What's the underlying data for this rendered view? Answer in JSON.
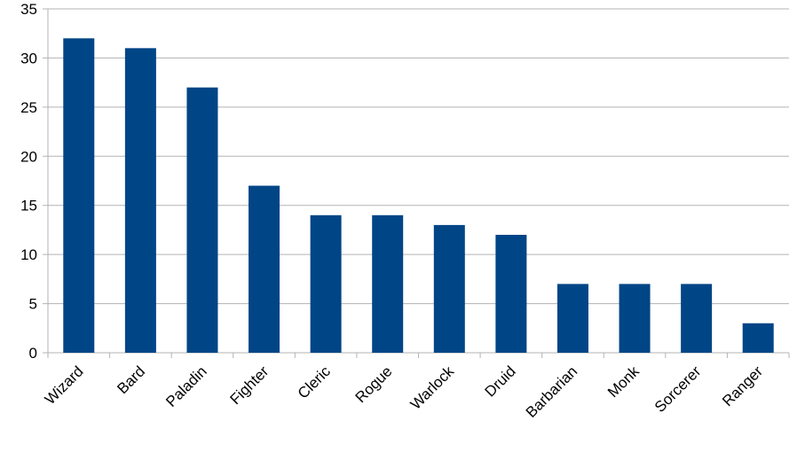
{
  "chart_data": {
    "type": "bar",
    "categories": [
      "Wizard",
      "Bard",
      "Paladin",
      "Fighter",
      "Cleric",
      "Rogue",
      "Warlock",
      "Druid",
      "Barbarian",
      "Monk",
      "Sorcerer",
      "Ranger"
    ],
    "values": [
      32,
      31,
      27,
      17,
      14,
      14,
      13,
      12,
      7,
      7,
      7,
      3
    ],
    "color": "#004586",
    "ylim": [
      0,
      35
    ],
    "yticks": [
      0,
      5,
      10,
      15,
      20,
      25,
      30,
      35
    ],
    "grid": true
  }
}
